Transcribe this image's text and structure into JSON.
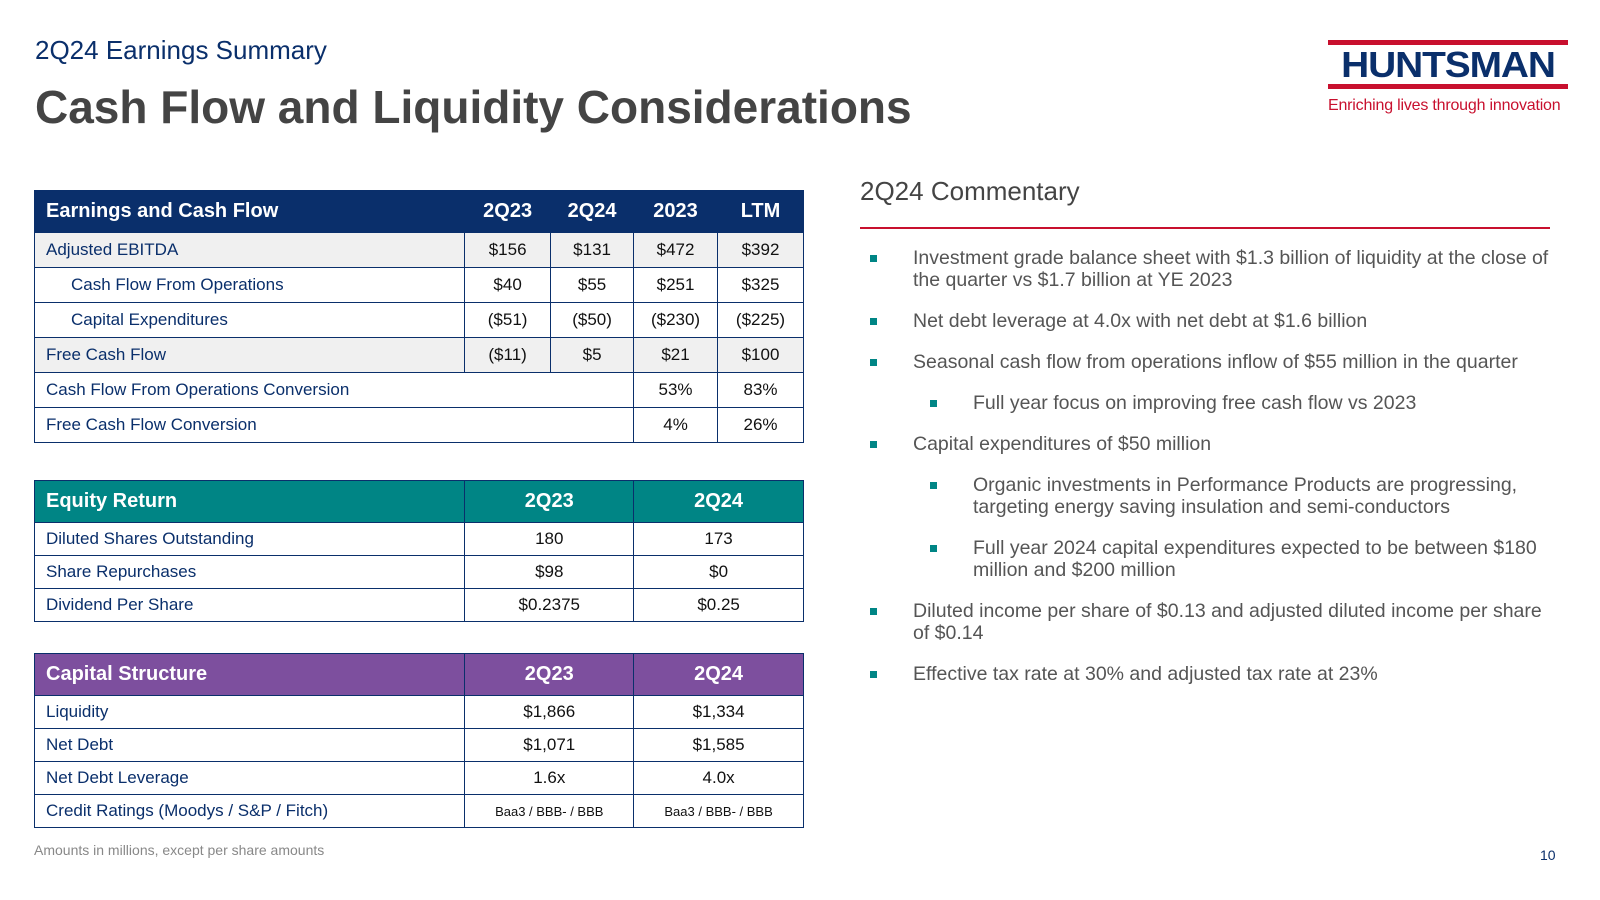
{
  "header": {
    "subtitle": "2Q24 Earnings Summary",
    "title": "Cash Flow and Liquidity Considerations"
  },
  "logo": {
    "wordmark": "HUNTSMAN",
    "tagline": "Enriching lives through innovation"
  },
  "earnings_table": {
    "header": [
      "Earnings and Cash Flow",
      "2Q23",
      "2Q24",
      "2023",
      "LTM"
    ],
    "rows": [
      {
        "label": "Adjusted EBITDA",
        "values": [
          "$156",
          "$131",
          "$472",
          "$392"
        ]
      },
      {
        "label": "Cash Flow From Operations",
        "values": [
          "$40",
          "$55",
          "$251",
          "$325"
        ]
      },
      {
        "label": "Capital Expenditures",
        "values": [
          "($51)",
          "($50)",
          "($230)",
          "($225)"
        ]
      },
      {
        "label": "Free Cash Flow",
        "values": [
          "($11)",
          "$5",
          "$21",
          "$100"
        ]
      },
      {
        "label": "Cash Flow From Operations Conversion",
        "values": [
          "53%",
          "83%"
        ]
      },
      {
        "label": "Free Cash Flow Conversion",
        "values": [
          "4%",
          "26%"
        ]
      }
    ]
  },
  "equity_table": {
    "header": [
      "Equity Return",
      "2Q23",
      "2Q24"
    ],
    "rows": [
      {
        "label": "Diluted Shares Outstanding",
        "values": [
          "180",
          "173"
        ]
      },
      {
        "label": "Share Repurchases",
        "values": [
          "$98",
          "$0"
        ]
      },
      {
        "label": "Dividend Per Share",
        "values": [
          "$0.2375",
          "$0.25"
        ]
      }
    ]
  },
  "capital_table": {
    "header": [
      "Capital Structure",
      "2Q23",
      "2Q24"
    ],
    "rows": [
      {
        "label": "Liquidity",
        "values": [
          "$1,866",
          "$1,334"
        ]
      },
      {
        "label": "Net Debt",
        "values": [
          "$1,071",
          "$1,585"
        ]
      },
      {
        "label": "Net Debt Leverage",
        "values": [
          "1.6x",
          "4.0x"
        ]
      },
      {
        "label": "Credit Ratings (Moodys / S&P / Fitch)",
        "values": [
          "Baa3 / BBB- / BBB",
          "Baa3 / BBB- / BBB"
        ]
      }
    ]
  },
  "commentary": {
    "title": "2Q24 Commentary",
    "bullets": [
      {
        "text": "Investment grade balance sheet with $1.3 billion of liquidity at the close of the quarter vs $1.7 billion at YE 2023",
        "level": 1
      },
      {
        "text": "Net debt leverage at 4.0x with net debt at $1.6 billion",
        "level": 1
      },
      {
        "text": "Seasonal cash flow from operations inflow of $55 million in the quarter",
        "level": 1
      },
      {
        "text": "Full year focus on improving free cash flow vs 2023",
        "level": 2
      },
      {
        "text": "Capital expenditures of $50 million",
        "level": 1
      },
      {
        "text": "Organic investments in Performance Products are progressing, targeting energy saving insulation and semi-conductors",
        "level": 2
      },
      {
        "text": "Full year 2024 capital expenditures expected to be between $180 million and $200 million",
        "level": 2
      },
      {
        "text": "Diluted income per share of $0.13 and adjusted diluted income per share of $0.14",
        "level": 1
      },
      {
        "text": "Effective tax rate at 30% and adjusted tax rate at 23%",
        "level": 1
      }
    ]
  },
  "footer": {
    "note": "Amounts in millions, except per share amounts",
    "page_number": "10"
  },
  "colors": {
    "navy": "#0a2f6b",
    "teal": "#008585",
    "purple": "#7d4f9e",
    "red": "#c8102e"
  }
}
